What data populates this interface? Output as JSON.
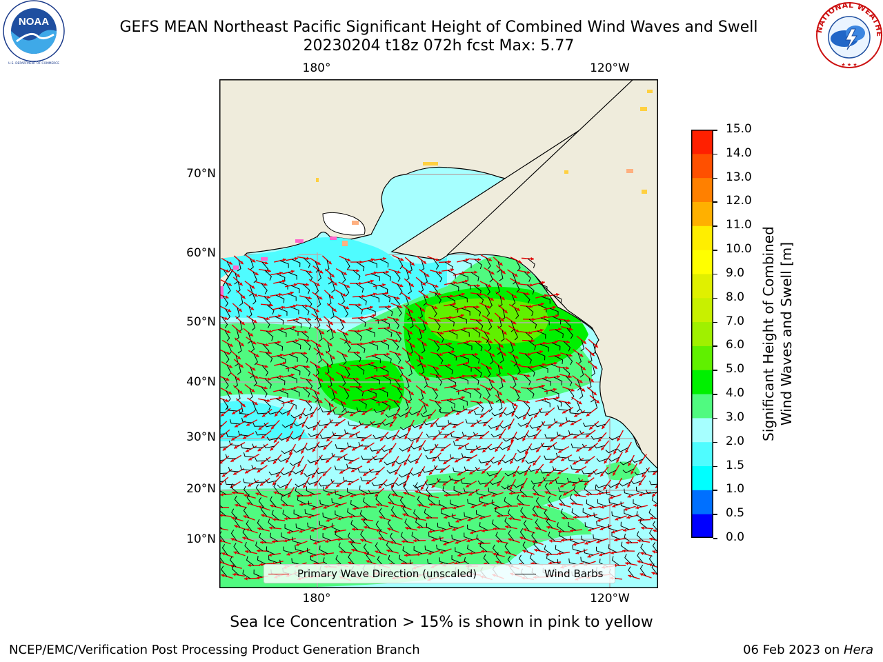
{
  "header": {
    "title_line1": "GEFS MEAN Northeast Pacific Significant Height of Combined Wind Waves and Swell",
    "title_line2": "20230204 t18z 072h fcst   Max: 5.77"
  },
  "logos": {
    "left": {
      "icon": "noaa-logo-icon",
      "text": "NOAA",
      "ring_text": "NATIONAL OCEANIC AND ATMOSPHERIC ADMINISTRATION · U.S. DEPARTMENT OF COMMERCE"
    },
    "right": {
      "icon": "nws-logo-icon",
      "ring_text": "NATIONAL WEATHER SERVICE"
    }
  },
  "map": {
    "lon_ticks": [
      "180°",
      "120°W"
    ],
    "lat_ticks": [
      "70°N",
      "60°N",
      "50°N",
      "40°N",
      "30°N",
      "20°N",
      "10°N"
    ],
    "land_color": "#efecdc",
    "legend": {
      "wave_label": "Primary Wave Direction (unscaled)",
      "wave_color": "#e00000",
      "barb_label": "Wind Barbs",
      "barb_color": "#000000"
    }
  },
  "colorbar": {
    "label_line1": "Significant Height of Combined",
    "label_line2": "Wind Waves and Swell [m]",
    "ticks": [
      "15.0",
      "14.0",
      "13.0",
      "12.0",
      "11.0",
      "10.0",
      "9.0",
      "8.0",
      "7.0",
      "6.0",
      "5.0",
      "4.0",
      "3.0",
      "2.0",
      "1.5",
      "1.0",
      "0.5",
      "0.0"
    ],
    "colors_bottom_to_top": [
      "#0000ff",
      "#0070ff",
      "#00ffff",
      "#4ffcff",
      "#a6ffff",
      "#50fa80",
      "#00f000",
      "#60f000",
      "#a0f000",
      "#c8f000",
      "#e0f000",
      "#ffff00",
      "#ffee00",
      "#ffb000",
      "#ff8000",
      "#ff5000",
      "#ff2000"
    ]
  },
  "footer": {
    "note": "Sea Ice Concentration > 15% is shown in pink to yellow",
    "credit": "NCEP/EMC/Verification Post Processing Product Generation Branch",
    "date": "06 Feb 2023 on ",
    "host": "Hera"
  }
}
